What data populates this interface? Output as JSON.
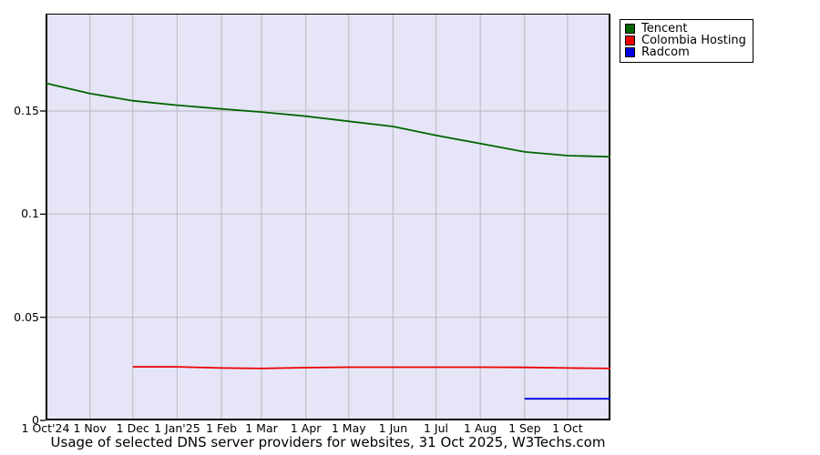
{
  "title": "Usage of selected DNS server providers for websites, 31 Oct 2025, W3Techs.com",
  "legend": {
    "position": "top-right",
    "items": [
      {
        "label": "Tencent",
        "color": "#006400"
      },
      {
        "label": "Colombia Hosting",
        "color": "#ee0000"
      },
      {
        "label": "Radcom",
        "color": "#0000dd"
      }
    ]
  },
  "chart_data": {
    "type": "line",
    "title": "Usage of selected DNS server providers for websites, 31 Oct 2025, W3Techs.com",
    "xlabel": "",
    "ylabel": "",
    "grid": true,
    "legend_position": "top-right",
    "colors": {
      "plot_bg": "#e5e5f7",
      "grid": "#bfbfc7",
      "axis": "#000000"
    },
    "x_axis": {
      "total_days": 395,
      "range": [
        "1 Oct 2024",
        "31 Oct 2025"
      ],
      "ticks": [
        {
          "label": "1 Oct'24",
          "day": 0
        },
        {
          "label": "1 Nov",
          "day": 31
        },
        {
          "label": "1 Dec",
          "day": 61
        },
        {
          "label": "1 Jan'25",
          "day": 92
        },
        {
          "label": "1 Feb",
          "day": 123
        },
        {
          "label": "1 Mar",
          "day": 151
        },
        {
          "label": "1 Apr",
          "day": 182
        },
        {
          "label": "1 May",
          "day": 212
        },
        {
          "label": "1 Jun",
          "day": 243
        },
        {
          "label": "1 Jul",
          "day": 273
        },
        {
          "label": "1 Aug",
          "day": 304
        },
        {
          "label": "1 Sep",
          "day": 335
        },
        {
          "label": "1 Oct",
          "day": 365
        }
      ]
    },
    "y_axis": {
      "max": 0.1972,
      "ylim": [
        0,
        0.1972
      ],
      "ticks": [
        {
          "value": 0,
          "label": "0"
        },
        {
          "value": 0.05,
          "label": "0.05"
        },
        {
          "value": 0.1,
          "label": "0.1"
        },
        {
          "value": 0.15,
          "label": "0.15"
        }
      ]
    },
    "series": [
      {
        "name": "Tencent",
        "color": "#006400",
        "points": [
          [
            0,
            0.1635
          ],
          [
            31,
            0.1585
          ],
          [
            61,
            0.155
          ],
          [
            92,
            0.1528
          ],
          [
            123,
            0.151
          ],
          [
            151,
            0.1495
          ],
          [
            182,
            0.1475
          ],
          [
            212,
            0.145
          ],
          [
            243,
            0.1425
          ],
          [
            273,
            0.1382
          ],
          [
            304,
            0.1342
          ],
          [
            335,
            0.1302
          ],
          [
            365,
            0.1284
          ],
          [
            395,
            0.1278
          ]
        ]
      },
      {
        "name": "Colombia Hosting",
        "color": "#ee0000",
        "points": [
          [
            61,
            0.026
          ],
          [
            92,
            0.026
          ],
          [
            123,
            0.0254
          ],
          [
            151,
            0.0252
          ],
          [
            182,
            0.0256
          ],
          [
            212,
            0.0258
          ],
          [
            243,
            0.0258
          ],
          [
            273,
            0.0258
          ],
          [
            304,
            0.0258
          ],
          [
            335,
            0.0257
          ],
          [
            365,
            0.0254
          ],
          [
            395,
            0.0252
          ]
        ]
      },
      {
        "name": "Radcom",
        "color": "#0000dd",
        "points": [
          [
            335,
            0.0105
          ],
          [
            365,
            0.0105
          ],
          [
            395,
            0.0105
          ]
        ]
      }
    ]
  }
}
